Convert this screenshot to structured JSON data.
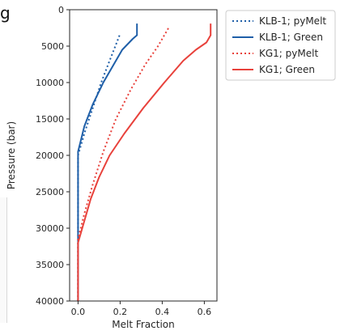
{
  "stray_text": "g",
  "chart_data": {
    "type": "line",
    "title": "",
    "xlabel": "Melt Fraction",
    "ylabel": "Pressure (bar)",
    "xlim": [
      -0.04,
      0.66
    ],
    "ylim": [
      40000,
      0
    ],
    "y_inverted": true,
    "xticks": [
      0.0,
      0.2,
      0.4,
      0.6
    ],
    "xtick_labels": [
      "0.0",
      "0.2",
      "0.4",
      "0.6"
    ],
    "yticks": [
      0,
      5000,
      10000,
      15000,
      20000,
      25000,
      30000,
      35000,
      40000
    ],
    "ytick_labels": [
      "0",
      "5000",
      "10000",
      "15000",
      "20000",
      "25000",
      "30000",
      "35000",
      "40000"
    ],
    "grid": false,
    "legend_position": "outside-right-top",
    "series": [
      {
        "name": "KLB-1; pyMelt",
        "color": "#1f5fa8",
        "style": "dotted",
        "points": [
          [
            0.0,
            40000
          ],
          [
            0.0,
            20000
          ],
          [
            0.03,
            17000
          ],
          [
            0.07,
            13500
          ],
          [
            0.11,
            10000
          ],
          [
            0.15,
            7000
          ],
          [
            0.18,
            4800
          ],
          [
            0.2,
            3300
          ]
        ]
      },
      {
        "name": "KLB-1; Green",
        "color": "#1f5fa8",
        "style": "solid",
        "points": [
          [
            0.0,
            40000
          ],
          [
            0.0,
            19500
          ],
          [
            0.03,
            16000
          ],
          [
            0.07,
            13000
          ],
          [
            0.12,
            10000
          ],
          [
            0.17,
            7500
          ],
          [
            0.21,
            5500
          ],
          [
            0.26,
            4000
          ],
          [
            0.28,
            3500
          ],
          [
            0.28,
            1900
          ]
        ]
      },
      {
        "name": "KG1; pyMelt",
        "color": "#e8413b",
        "style": "dotted",
        "points": [
          [
            0.0,
            40000
          ],
          [
            0.0,
            31500
          ],
          [
            0.03,
            28000
          ],
          [
            0.07,
            24000
          ],
          [
            0.12,
            19500
          ],
          [
            0.18,
            15000
          ],
          [
            0.25,
            11000
          ],
          [
            0.32,
            7500
          ],
          [
            0.38,
            5000
          ],
          [
            0.43,
            2500
          ]
        ]
      },
      {
        "name": "KG1; Green",
        "color": "#e8413b",
        "style": "solid",
        "points": [
          [
            0.0,
            40000
          ],
          [
            0.0,
            32000
          ],
          [
            0.02,
            30000
          ],
          [
            0.06,
            26000
          ],
          [
            0.1,
            23000
          ],
          [
            0.15,
            20000
          ],
          [
            0.22,
            17000
          ],
          [
            0.31,
            13500
          ],
          [
            0.41,
            10000
          ],
          [
            0.5,
            7000
          ],
          [
            0.56,
            5500
          ],
          [
            0.61,
            4500
          ],
          [
            0.63,
            3500
          ],
          [
            0.63,
            1900
          ]
        ]
      }
    ]
  }
}
